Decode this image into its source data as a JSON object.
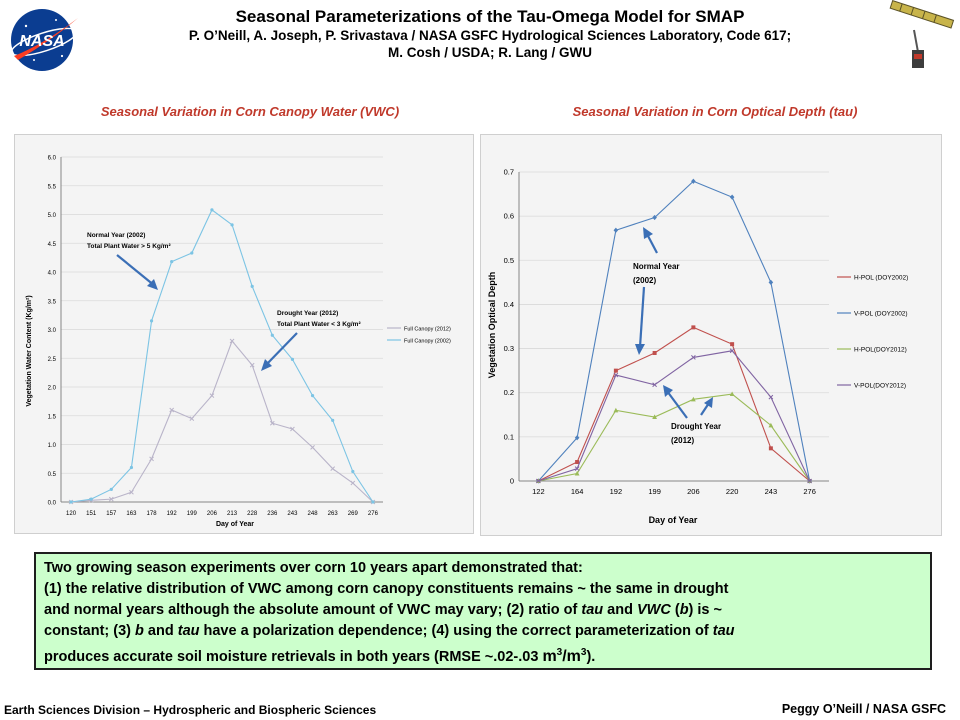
{
  "header": {
    "title": "Seasonal Parameterizations of the Tau-Omega Model for SMAP",
    "authors_line1": "P. O’Neill, A. Joseph, P. Srivastava / NASA GSFC Hydrological Sciences Laboratory, Code 617;",
    "authors_line2": "M. Cosh / USDA; R. Lang / GWU",
    "logo_text": "NASA"
  },
  "colors": {
    "heading_red": "#c0392b",
    "summary_bg": "#ccffcc",
    "nasa_blue": "#0b3d91",
    "nasa_red": "#fc3d21",
    "series_full_2012": "#b9b4c9",
    "series_full_2002": "#7cc4e4",
    "series_hpol_2002": "#c0504d",
    "series_vpol_2002": "#4f81bd",
    "series_hpol_2012": "#9bbb59",
    "series_vpol_2012": "#8064a2",
    "annotation_arrow": "#3b6fb6"
  },
  "chart_data": [
    {
      "type": "line",
      "heading": "Seasonal Variation in Corn Canopy Water (VWC)",
      "xlabel": "Day of Year",
      "ylabel": "Vegetation Water Content (Kg/m²)",
      "categories": [
        "120",
        "151",
        "157",
        "163",
        "178",
        "192",
        "199",
        "206",
        "213",
        "228",
        "236",
        "243",
        "248",
        "263",
        "269",
        "276"
      ],
      "ylim": [
        0,
        6
      ],
      "yticks": [
        "0.0",
        "0.5",
        "1.0",
        "1.5",
        "2.0",
        "2.5",
        "3.0",
        "3.5",
        "4.0",
        "4.5",
        "5.0",
        "5.5",
        "6.0"
      ],
      "grid": true,
      "legend_position": "right",
      "series": [
        {
          "name": "Full Canopy (2012)",
          "values": [
            0.0,
            0.03,
            0.05,
            0.17,
            0.75,
            1.6,
            1.45,
            1.85,
            2.8,
            2.38,
            1.37,
            1.27,
            0.95,
            0.58,
            0.33,
            0.0
          ]
        },
        {
          "name": "Full Canopy (2002)",
          "values": [
            0.0,
            0.05,
            0.22,
            0.6,
            3.15,
            4.18,
            4.33,
            5.08,
            4.82,
            3.75,
            2.9,
            2.48,
            1.85,
            1.42,
            0.53,
            0.0
          ]
        }
      ],
      "annotations": [
        {
          "line1": "Normal Year (2002)",
          "line2": "Total Plant Water > 5 Kg/m²"
        },
        {
          "line1": "Drought Year (2012)",
          "line2": "Total Plant Water < 3 Kg/m²"
        }
      ]
    },
    {
      "type": "line",
      "heading": "Seasonal Variation in Corn Optical Depth (tau)",
      "xlabel": "Day of Year",
      "ylabel": "Vegetation Optical Depth",
      "categories": [
        "122",
        "164",
        "192",
        "199",
        "206",
        "220",
        "243",
        "276"
      ],
      "ylim": [
        0,
        0.7
      ],
      "yticks": [
        "0",
        "0.1",
        "0.2",
        "0.3",
        "0.4",
        "0.5",
        "0.6",
        "0.7"
      ],
      "grid": true,
      "legend_position": "right",
      "series": [
        {
          "name": "H-POL (DOY2002)",
          "values": [
            0.0,
            0.043,
            0.25,
            0.29,
            0.348,
            0.31,
            0.074,
            0.0
          ]
        },
        {
          "name": "V-POL (DOY2002)",
          "values": [
            0.0,
            0.098,
            0.568,
            0.597,
            0.679,
            0.643,
            0.45,
            0.0
          ]
        },
        {
          "name": "H-POL(DOY2012)",
          "values": [
            0.0,
            0.017,
            0.16,
            0.145,
            0.185,
            0.197,
            0.126,
            0.0
          ]
        },
        {
          "name": "V-POL(DOY2012)",
          "values": [
            0.0,
            0.028,
            0.24,
            0.218,
            0.28,
            0.295,
            0.19,
            0.0
          ]
        }
      ],
      "annotations": [
        {
          "line1": "Normal Year",
          "line2": "(2002)"
        },
        {
          "line1": "Drought Year",
          "line2": "(2012)"
        }
      ]
    }
  ],
  "summary": {
    "line1": "Two growing season experiments over corn 10 years apart demonstrated that:",
    "line2": " (1) the relative distribution of VWC among corn canopy constituents remains ~ the same in drought",
    "line3_a": "and normal years although the absolute amount of VWC may vary;  (2) ratio of ",
    "tau": "tau",
    "and": " and ",
    "vwc": "VWC",
    "paren_open": " (",
    "b": "b",
    "line3_b": ") is ~",
    "line4_a": "constant;  (3) ",
    "line4_b": " and ",
    "line4_c": " have a polarization dependence;  (4) using the correct parameterization of ",
    "line5_a": "produces accurate soil moisture retrievals in both years (RMSE ~.02-.03 ",
    "unit_m": "m",
    "sup3": "3",
    "unit_slash": "/m",
    "line5_end": ")."
  },
  "footer": {
    "left": "Earth Sciences Division – Hydrospheric and Biospheric Sciences",
    "right": "Peggy O’Neill / NASA GSFC"
  }
}
